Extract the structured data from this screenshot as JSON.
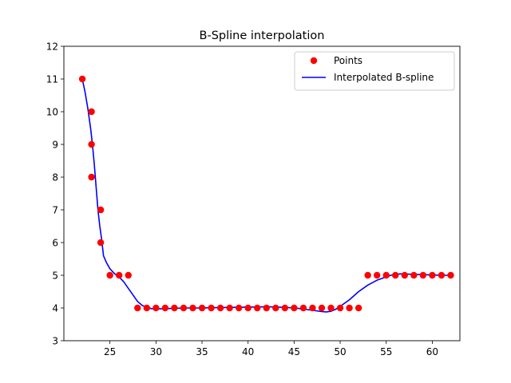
{
  "chart_data": {
    "type": "line",
    "title": "B-Spline interpolation",
    "xlabel": "",
    "ylabel": "",
    "xlim": [
      20.0,
      63.0
    ],
    "ylim": [
      3,
      12
    ],
    "xticks": [
      25,
      30,
      35,
      40,
      45,
      50,
      55,
      60
    ],
    "yticks": [
      3,
      4,
      5,
      6,
      7,
      8,
      9,
      10,
      11,
      12
    ],
    "grid": false,
    "legend_position": "top-right",
    "colors": {
      "points": "#ff0000",
      "spline": "#0000ff"
    },
    "series": [
      {
        "name": "Points",
        "type": "scatter",
        "x": [
          22,
          23,
          23,
          23,
          24,
          24,
          25,
          26,
          27,
          28,
          29,
          30,
          31,
          32,
          33,
          34,
          35,
          36,
          37,
          38,
          39,
          40,
          41,
          42,
          43,
          44,
          45,
          46,
          47,
          48,
          49,
          50,
          51,
          52,
          53,
          54,
          55,
          56,
          57,
          58,
          59,
          60,
          61,
          62
        ],
        "y": [
          11,
          10,
          9,
          8,
          7,
          6,
          5,
          5,
          5,
          4,
          4,
          4,
          4,
          4,
          4,
          4,
          4,
          4,
          4,
          4,
          4,
          4,
          4,
          4,
          4,
          4,
          4,
          4,
          4,
          4,
          4,
          4,
          4,
          4,
          5,
          5,
          5,
          5,
          5,
          5,
          5,
          5,
          5,
          5
        ]
      },
      {
        "name": "Interpolated B-spline",
        "type": "line",
        "x": [
          22,
          22.3,
          22.6,
          22.9,
          23.1,
          23.3,
          23.5,
          23.7,
          23.9,
          24.1,
          24.3,
          24.6,
          25.0,
          25.5,
          26.0,
          26.5,
          27.0,
          27.5,
          28.0,
          28.5,
          29.0,
          29.5,
          30.0,
          31.0,
          32.0,
          33.0,
          34.0,
          35.0,
          36.0,
          37.0,
          38.0,
          39.0,
          40.0,
          41.0,
          42.0,
          43.0,
          44.0,
          45.0,
          46.0,
          47.0,
          48.0,
          48.5,
          49.0,
          49.5,
          50.0,
          51.0,
          52.0,
          53.0,
          54.0,
          55.0,
          55.5,
          56.0,
          56.5,
          57.0,
          58.0,
          59.0,
          60.0,
          61.0,
          62.0
        ],
        "y": [
          11.0,
          10.6,
          10.1,
          9.5,
          9.0,
          8.4,
          7.7,
          7.0,
          6.5,
          6.1,
          5.6,
          5.4,
          5.2,
          5.05,
          4.95,
          4.8,
          4.6,
          4.4,
          4.2,
          4.08,
          4.02,
          3.98,
          3.97,
          3.98,
          3.99,
          4.0,
          4.0,
          4.0,
          4.01,
          4.01,
          4.02,
          4.02,
          4.03,
          4.03,
          4.04,
          4.03,
          4.02,
          4.0,
          3.97,
          3.93,
          3.89,
          3.88,
          3.9,
          3.96,
          4.05,
          4.25,
          4.5,
          4.7,
          4.85,
          4.95,
          5.0,
          5.03,
          5.04,
          5.04,
          5.03,
          5.02,
          5.01,
          5.0,
          5.0
        ]
      }
    ]
  }
}
